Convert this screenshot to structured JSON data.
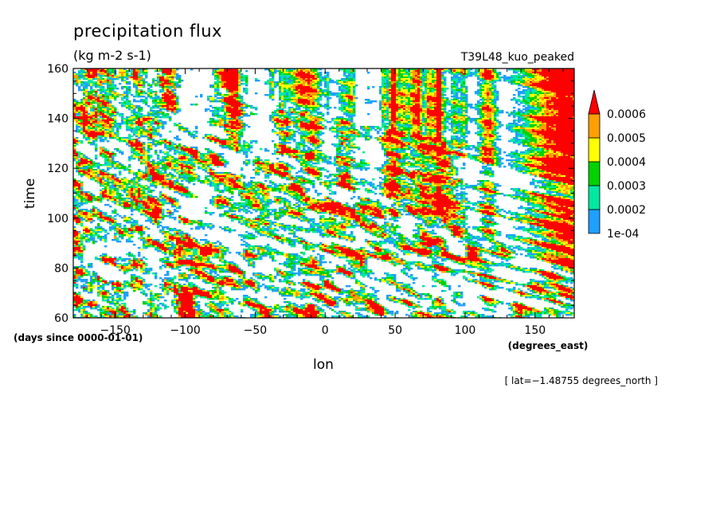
{
  "header": {
    "title": "precipitation flux",
    "units": "(kg m-2 s-1)",
    "experiment": "T39L48_kuo_peaked"
  },
  "chart_data": {
    "type": "heatmap",
    "title": "precipitation flux",
    "subtitle": "(kg m-2 s-1)",
    "xlabel": "lon",
    "x_units": "(degrees_east)",
    "ylabel": "time",
    "y_units": "(days since 0000-01-01)",
    "xlim": [
      -180,
      178
    ],
    "ylim": [
      60,
      160
    ],
    "x_ticks": [
      -150,
      -100,
      -50,
      0,
      50,
      100,
      150
    ],
    "x_tick_labels": [
      "−150",
      "−100",
      "−50",
      "0",
      "50",
      "100",
      "150"
    ],
    "y_ticks": [
      60,
      80,
      100,
      120,
      140,
      160
    ],
    "y_tick_labels": [
      "60",
      "80",
      "100",
      "120",
      "140",
      "160"
    ],
    "annotation": "[ lat=−1.48755 degrees_north ]",
    "grid": false,
    "legend_position": "right",
    "colorbar": {
      "levels": [
        0.0001,
        0.0002,
        0.0003,
        0.0004,
        0.0005,
        0.0006
      ],
      "labels": [
        "1e-04",
        "0.0002",
        "0.0003",
        "0.0004",
        "0.0005",
        "0.0006"
      ],
      "colors": [
        "#1ea0ff",
        "#00e8a0",
        "#00d200",
        "#ffff00",
        "#ffa000",
        "#ff0000"
      ],
      "extend": "max"
    }
  }
}
